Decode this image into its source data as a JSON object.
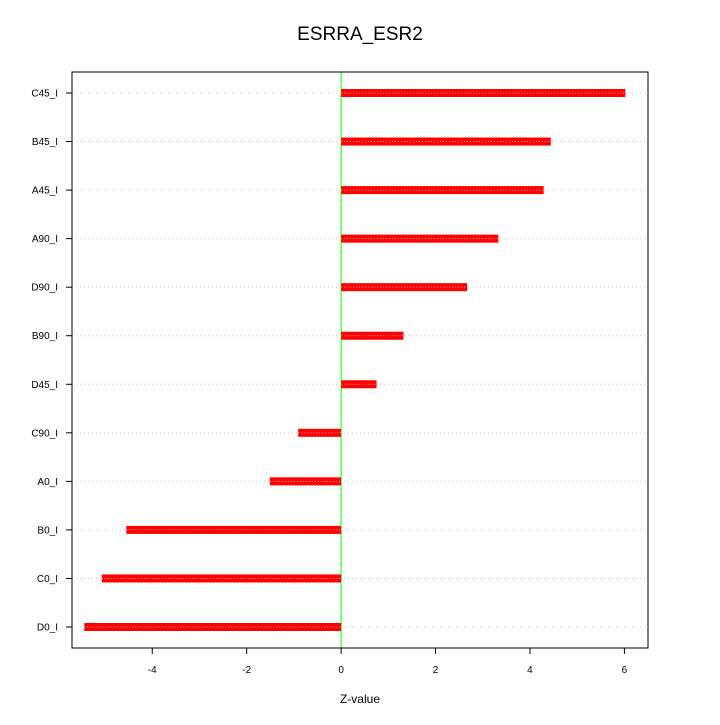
{
  "chart_data": {
    "type": "bar",
    "orientation": "horizontal",
    "title": "ESRRA_ESR2",
    "xlabel": "Z-value",
    "ylabel": "",
    "categories": [
      "C45_I",
      "B45_I",
      "A45_I",
      "A90_I",
      "D90_I",
      "B90_I",
      "D45_I",
      "C90_I",
      "A0_I",
      "B0_I",
      "C0_I",
      "D0_I"
    ],
    "values": [
      6.02,
      4.44,
      4.29,
      3.33,
      2.67,
      1.32,
      0.75,
      -0.91,
      -1.51,
      -4.55,
      -5.07,
      -5.44
    ],
    "xlim": [
      -5.7,
      6.5
    ],
    "xticks": [
      -4,
      -2,
      0,
      2,
      4,
      6
    ],
    "xtick_labels": [
      "-4",
      "-2",
      "0",
      "2",
      "4",
      "6"
    ],
    "grid": true,
    "zero_line": true,
    "colors": {
      "bar": "#ff0000",
      "bar_center": "#ffb0b0",
      "zero_line": "#00ff00",
      "grid": "#c8c8c8",
      "frame": "#000000"
    }
  }
}
